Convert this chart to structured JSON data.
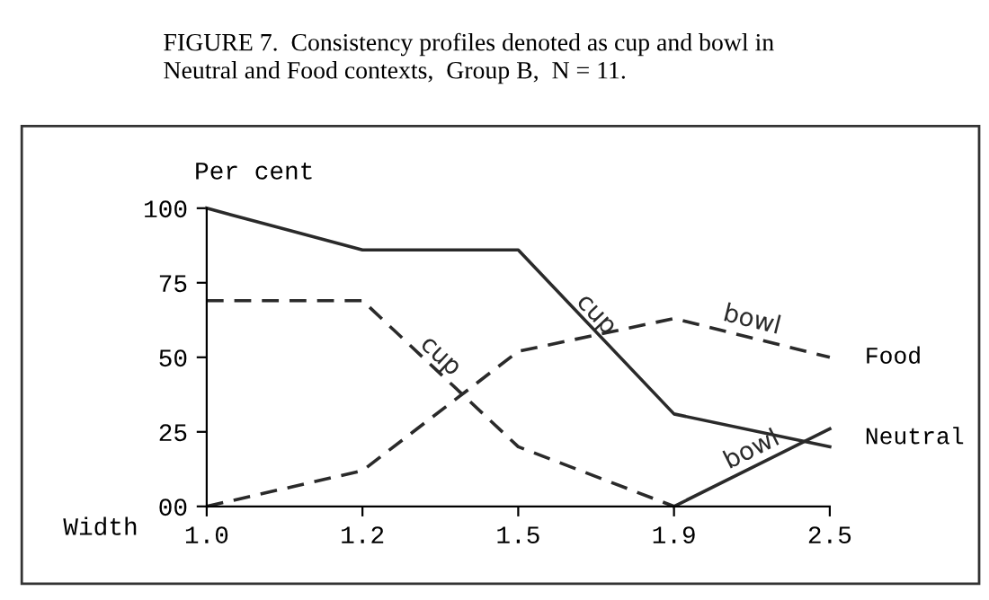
{
  "chart_data": {
    "type": "line",
    "title": "FIGURE 7.  Consistency profiles denoted as cup and bowl in\nNeutral and Food contexts,  Group B,  N = 11.",
    "ylabel": "Per cent",
    "xlabel": "Width",
    "categories": [
      "1.0",
      "1.2",
      "1.5",
      "1.9",
      "2.5"
    ],
    "series": [
      {
        "name": "cup",
        "color": "#2a2a2a",
        "line_style": "solid",
        "values": [
          100,
          86,
          86,
          31,
          20
        ]
      },
      {
        "name": "bowl",
        "color": "#2a2a2a",
        "line_style": "solid",
        "values": [
          null,
          null,
          null,
          0,
          26
        ]
      },
      {
        "name": "cup",
        "color": "#2a2a2a",
        "line_style": "dashed",
        "values": [
          69,
          69,
          20,
          0,
          null
        ]
      },
      {
        "name": "bowl",
        "color": "#2a2a2a",
        "line_style": "dashed",
        "values": [
          0,
          12,
          52,
          63,
          50
        ]
      }
    ],
    "annotations": [
      {
        "text": "Food",
        "x": "2.5",
        "y": 50
      },
      {
        "text": "Neutral",
        "x": "2.5",
        "y": 23
      }
    ],
    "ylim": [
      0,
      100
    ],
    "yticks": [
      {
        "value": 0,
        "label": "00"
      },
      25,
      50,
      75,
      100
    ],
    "grid": false,
    "legend": false,
    "marker": "none"
  }
}
